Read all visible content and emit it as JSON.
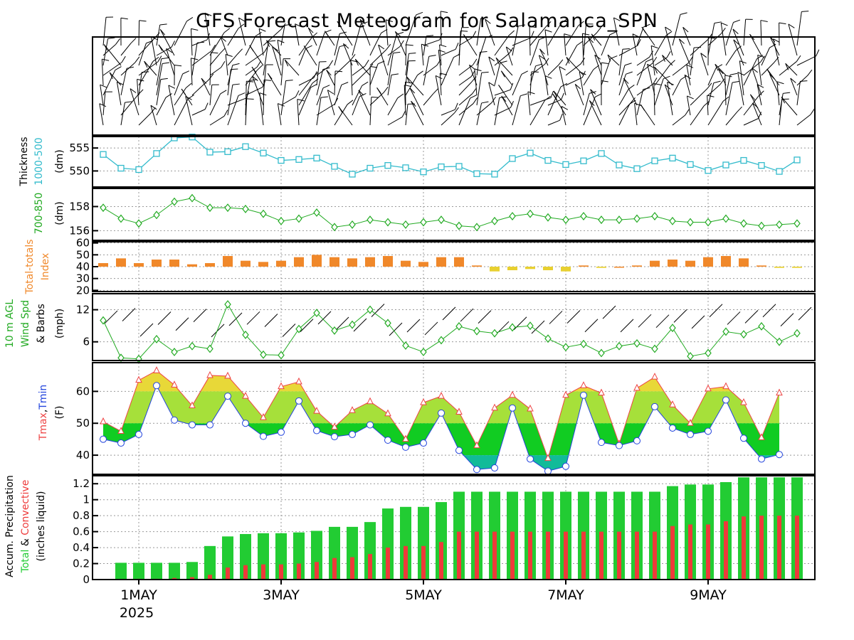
{
  "title": "GFS Forecast Meteogram for Salamanca_SPN",
  "x_axis": {
    "date_labels": [
      "1MAY",
      "3MAY",
      "5MAY",
      "7MAY",
      "9MAY"
    ],
    "year_label": "2025"
  },
  "colors": {
    "thickness_1000_500": "#33bbcc",
    "thickness_700_850": "#22aa22",
    "tt_orange": "#f0882a",
    "tt_yellow": "#e8d030",
    "tt_labels": [
      "#f0882a",
      "#f0882a",
      "#f0882a",
      "#f0882a",
      "#e8d030",
      "#e8d030"
    ],
    "wind_line": "#22aa22",
    "tmax_line": "#ee4444",
    "tmin_line": "#2244dd",
    "temp_band_60_70": "#e8d838",
    "temp_band_50_60": "#a6e03a",
    "temp_band_40_50": "#11cc22",
    "temp_band_30_40": "#11bb99",
    "precip_total": "#22cc33",
    "precip_convective": "#ee3a3a"
  },
  "chart_data": [
    {
      "panel": "wind_barbs_upper",
      "type": "other"
    },
    {
      "panel": "thickness_1000_500",
      "type": "line",
      "ylabel": [
        "(dm)"
      ],
      "ylabel_color_lines": [
        "1000-500"
      ],
      "ylabel_black_lines": [
        "Thickness"
      ],
      "yticks": [
        550,
        555
      ],
      "ylim": [
        546.5,
        557.5
      ],
      "values": [
        553.6,
        550.6,
        550.3,
        553.8,
        557.2,
        557.4,
        554.1,
        554.2,
        555.3,
        553.9,
        552.3,
        552.5,
        552.8,
        551.0,
        549.3,
        550.6,
        551.2,
        550.7,
        549.8,
        550.9,
        551.0,
        549.4,
        549.3,
        552.7,
        553.9,
        552.3,
        551.4,
        552.2,
        553.8,
        551.3,
        550.5,
        552.2,
        552.8,
        551.4,
        550.1,
        551.3,
        552.3,
        551.2,
        549.9,
        552.4
      ]
    },
    {
      "panel": "thickness_700_850",
      "type": "line",
      "ylabel": [
        "(dm)"
      ],
      "ylabel_color_lines": [
        "700-850"
      ],
      "yticks": [
        156,
        158
      ],
      "ylim": [
        155.2,
        159.5
      ],
      "values": [
        157.9,
        157.0,
        156.6,
        157.3,
        158.4,
        158.7,
        157.9,
        157.9,
        157.8,
        157.4,
        156.8,
        157.0,
        157.5,
        156.3,
        156.5,
        156.9,
        156.7,
        156.5,
        156.7,
        156.9,
        156.4,
        156.3,
        156.8,
        157.2,
        157.4,
        157.1,
        156.9,
        157.2,
        156.9,
        156.9,
        157.0,
        157.2,
        156.8,
        156.7,
        156.7,
        157.0,
        156.6,
        156.4,
        156.5,
        156.6
      ]
    },
    {
      "panel": "total_totals",
      "type": "bar",
      "ylabel_color_lines": [
        "Total-totals",
        "Index"
      ],
      "yticks": [
        20,
        30,
        40,
        50,
        60
      ],
      "ylim": [
        19,
        61
      ],
      "values": [
        43,
        47,
        43,
        46,
        46,
        42,
        43,
        49,
        45,
        44,
        45,
        48,
        50,
        48,
        47,
        48,
        49,
        45,
        44,
        48,
        48,
        41,
        36,
        37,
        38,
        37,
        36,
        41,
        39,
        40,
        41,
        45,
        46,
        45,
        48,
        49,
        47,
        41,
        39,
        39
      ]
    },
    {
      "panel": "wind_10m",
      "type": "line",
      "ylabel_color_lines": [
        "10 m AGL",
        "Wind Spd"
      ],
      "ylabel_black_lines": [
        "& Barbs",
        "(mph)"
      ],
      "yticks": [
        6,
        12
      ],
      "ylim": [
        2.5,
        15.0
      ],
      "values": [
        10.0,
        3.0,
        2.8,
        6.5,
        4.1,
        5.2,
        4.7,
        13.0,
        7.3,
        3.6,
        3.5,
        8.4,
        11.4,
        8.1,
        9.2,
        12.0,
        9.5,
        5.3,
        4.1,
        6.3,
        8.9,
        8.0,
        7.6,
        8.7,
        9.0,
        6.6,
        5.0,
        5.6,
        3.9,
        5.2,
        5.7,
        4.7,
        8.6,
        3.3,
        3.9,
        7.9,
        7.4,
        8.9,
        6.0,
        7.6
      ]
    },
    {
      "panel": "temperature",
      "type": "area",
      "ylabel_colored": [
        {
          "text": "Tmax",
          "color": "#ee4444"
        },
        {
          "text": ",",
          "color": "#000000"
        },
        {
          "text": "Tmin",
          "color": "#2244dd"
        }
      ],
      "ylabel_black_lines": [
        "(F)"
      ],
      "yticks": [
        40,
        50,
        60
      ],
      "ylim": [
        34.0,
        69.0
      ],
      "series": [
        {
          "name": "Tmax",
          "values": [
            50.5,
            47.5,
            63.5,
            66.5,
            62.0,
            55.5,
            65.0,
            64.8,
            58.5,
            51.8,
            61.5,
            63.0,
            53.8,
            48.8,
            54.0,
            56.8,
            53.0,
            45.0,
            56.5,
            58.5,
            53.5,
            43.0,
            54.8,
            58.8,
            54.5,
            39.0,
            58.8,
            61.8,
            59.5,
            43.5,
            61.0,
            64.5,
            55.8,
            50.0,
            60.8,
            61.5,
            56.5,
            45.5,
            59.5
          ]
        },
        {
          "name": "Tmin",
          "values": [
            45.0,
            43.8,
            46.5,
            61.8,
            51.0,
            49.5,
            49.5,
            58.5,
            50.0,
            45.9,
            47.2,
            57.0,
            47.7,
            45.8,
            46.5,
            49.5,
            44.7,
            42.5,
            43.8,
            53.2,
            41.5,
            35.5,
            36.0,
            54.8,
            38.8,
            35.0,
            36.5,
            58.8,
            44.0,
            43.0,
            44.5,
            55.2,
            48.5,
            46.5,
            47.5,
            57.3,
            45.3,
            38.8,
            40.2
          ]
        }
      ]
    },
    {
      "panel": "precipitation",
      "type": "bar",
      "ylabel_black_lines": [
        "Accum. Precipitation",
        "(inches liquid)"
      ],
      "ylabel_colored": [
        {
          "text": "Total",
          "color": "#22cc33"
        },
        {
          "text": " & ",
          "color": "#000000"
        },
        {
          "text": "Convective",
          "color": "#ee3a3a"
        }
      ],
      "yticks": [
        0,
        0.2,
        0.4,
        0.6,
        0.8,
        1,
        1.2
      ],
      "ytick_labels": [
        "0",
        "0.2",
        "0.4",
        "0.6",
        "0.8",
        "1",
        "1.2"
      ],
      "ylim": [
        0,
        1.3
      ],
      "series": [
        {
          "name": "Total",
          "values": [
            0.0,
            0.21,
            0.21,
            0.21,
            0.21,
            0.22,
            0.42,
            0.54,
            0.57,
            0.58,
            0.58,
            0.59,
            0.61,
            0.66,
            0.66,
            0.72,
            0.89,
            0.91,
            0.91,
            0.97,
            1.1,
            1.1,
            1.1,
            1.1,
            1.1,
            1.1,
            1.1,
            1.1,
            1.1,
            1.1,
            1.1,
            1.1,
            1.17,
            1.19,
            1.19,
            1.22,
            1.28,
            1.28,
            1.28,
            1.28
          ]
        },
        {
          "name": "Convective",
          "values": [
            0.0,
            0.0,
            0.01,
            0.01,
            0.02,
            0.03,
            0.06,
            0.15,
            0.18,
            0.19,
            0.19,
            0.2,
            0.22,
            0.27,
            0.28,
            0.32,
            0.4,
            0.42,
            0.42,
            0.47,
            0.6,
            0.6,
            0.6,
            0.6,
            0.6,
            0.6,
            0.6,
            0.6,
            0.6,
            0.6,
            0.6,
            0.6,
            0.67,
            0.69,
            0.69,
            0.73,
            0.79,
            0.8,
            0.8,
            0.8
          ]
        }
      ]
    }
  ]
}
